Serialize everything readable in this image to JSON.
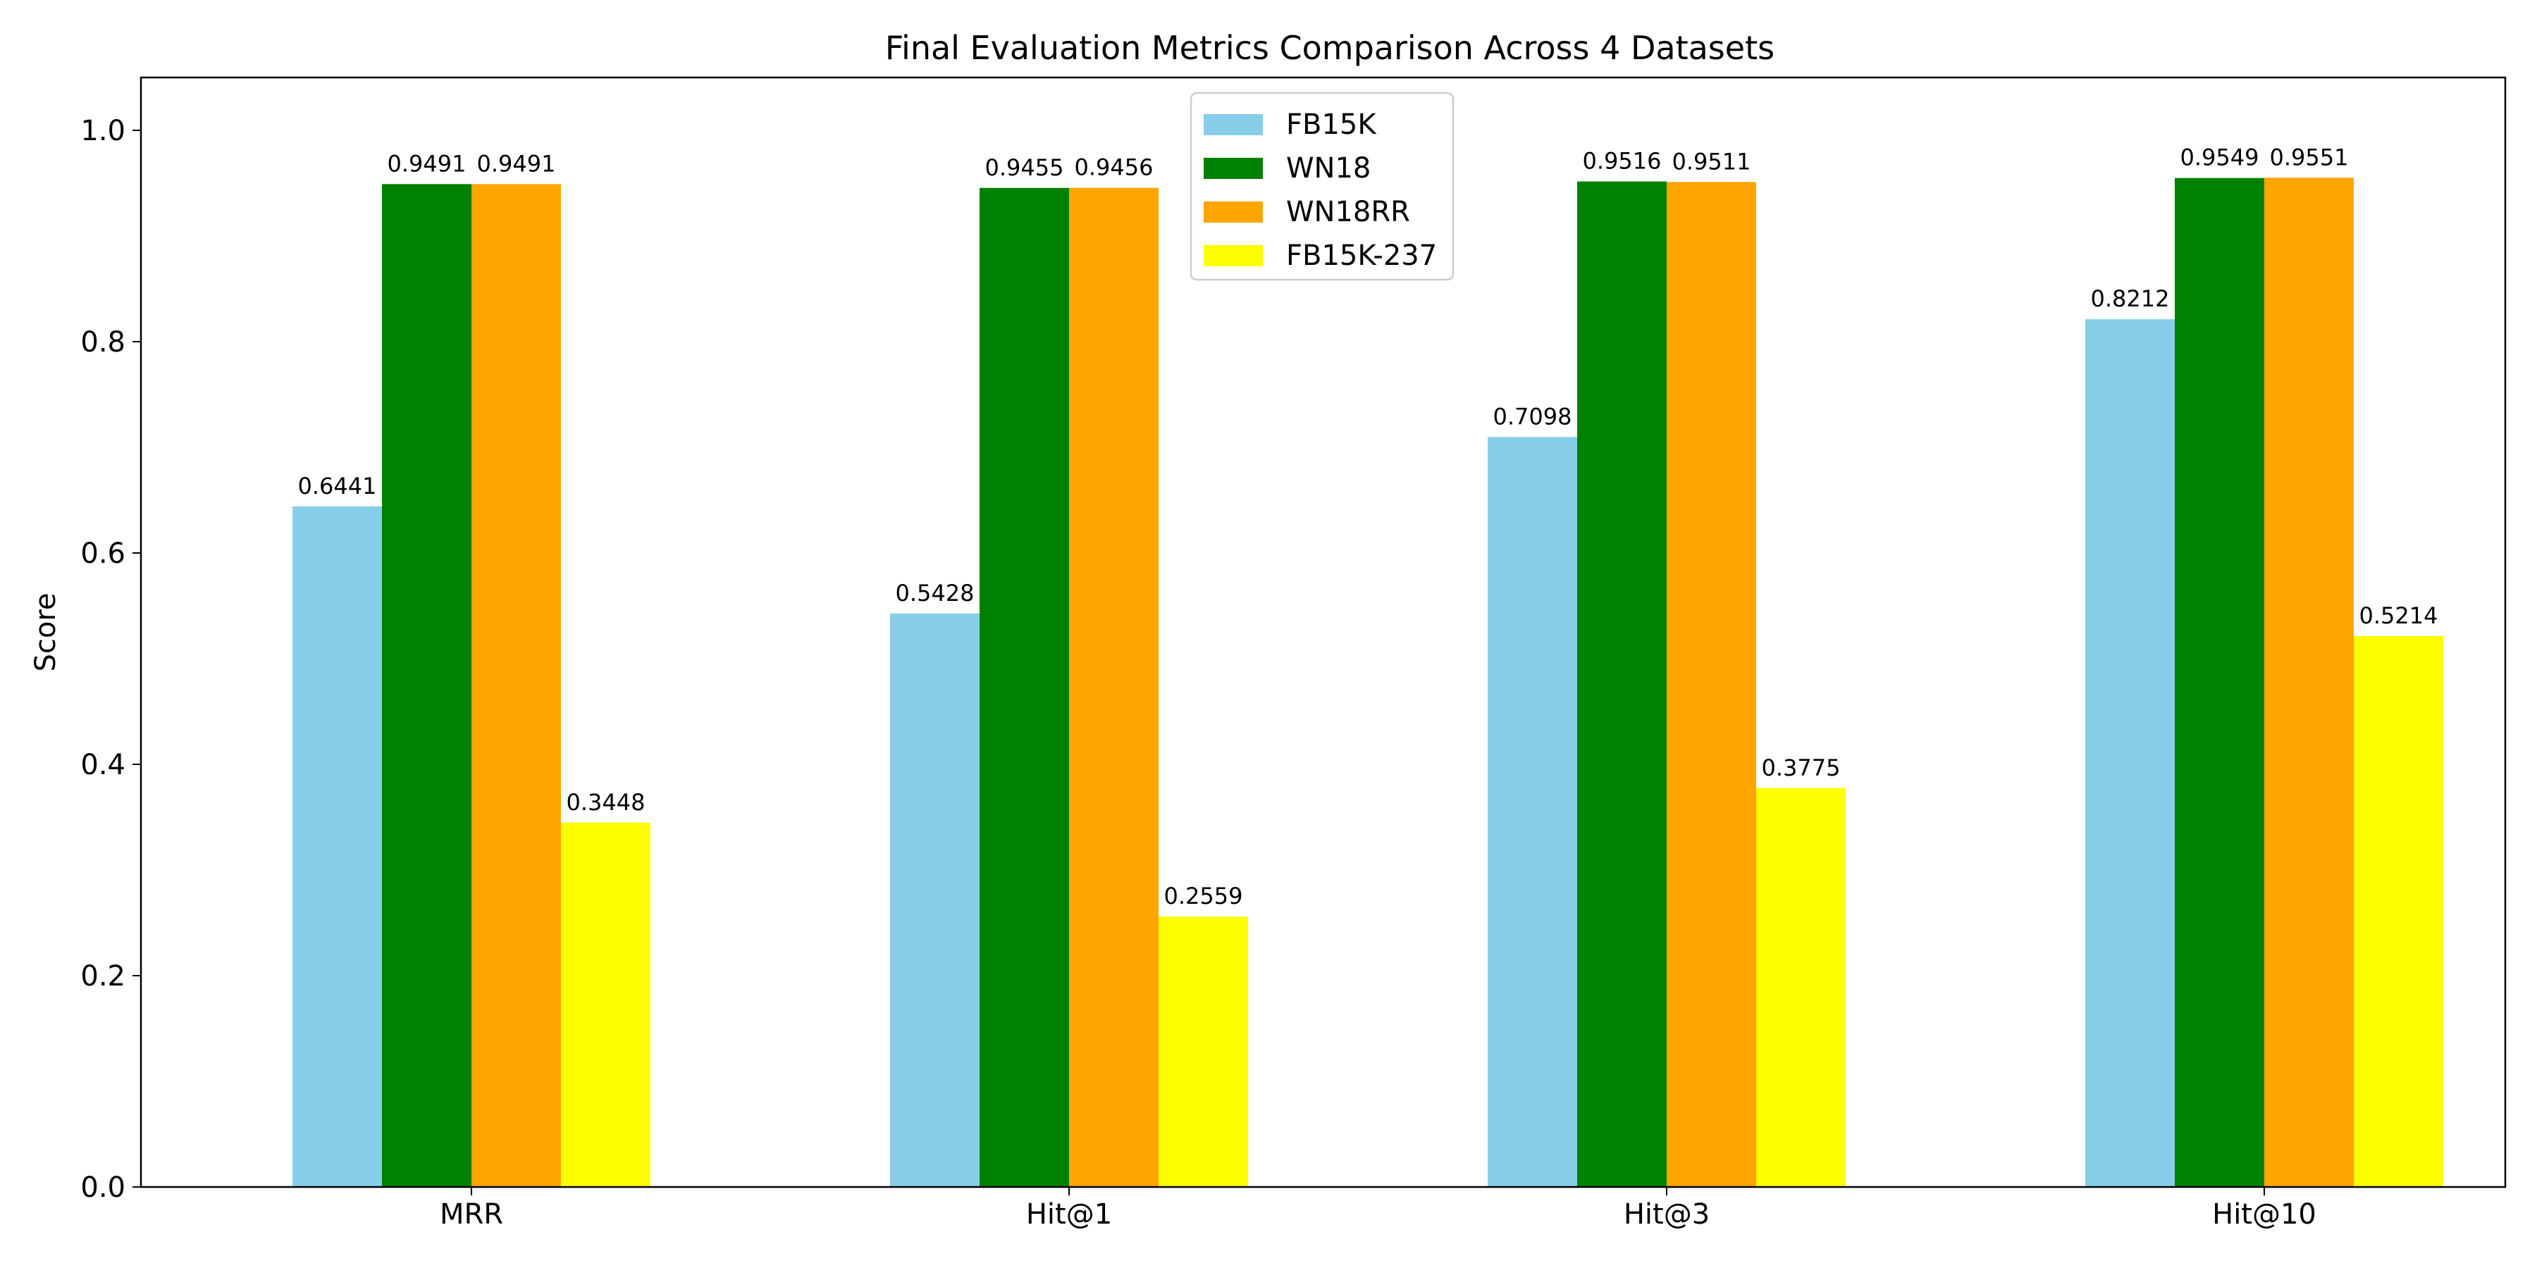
{
  "chart_data": {
    "type": "bar",
    "title": "Final Evaluation Metrics Comparison Across 4 Datasets",
    "xlabel": "",
    "ylabel": "Score",
    "ylim": [
      0,
      1.05
    ],
    "yticks": [
      "0.0",
      "0.2",
      "0.4",
      "0.6",
      "0.8",
      "1.0"
    ],
    "categories": [
      "MRR",
      "Hit@1",
      "Hit@3",
      "Hit@10"
    ],
    "series": [
      {
        "name": "FB15K",
        "color": "#87CEEB",
        "values": [
          0.6441,
          0.5428,
          0.7098,
          0.8212
        ],
        "labels": [
          "0.6441",
          "0.5428",
          "0.7098",
          "0.8212"
        ]
      },
      {
        "name": "WN18",
        "color": "#008000",
        "values": [
          0.9491,
          0.9455,
          0.9516,
          0.9549
        ],
        "labels": [
          "0.9491",
          "0.9455",
          "0.9516",
          "0.9549"
        ]
      },
      {
        "name": "WN18RR",
        "color": "#FFA500",
        "values": [
          0.9491,
          0.9456,
          0.9511,
          0.9551
        ],
        "labels": [
          "0.9491",
          "0.9456",
          "0.9511",
          "0.9551"
        ]
      },
      {
        "name": "FB15K-237",
        "color": "#FFFF00",
        "values": [
          0.3448,
          0.2559,
          0.3775,
          0.5214
        ],
        "labels": [
          "0.3448",
          "0.2559",
          "0.3775",
          "0.5214"
        ]
      }
    ],
    "legend_position": "top-center",
    "grid": false
  }
}
